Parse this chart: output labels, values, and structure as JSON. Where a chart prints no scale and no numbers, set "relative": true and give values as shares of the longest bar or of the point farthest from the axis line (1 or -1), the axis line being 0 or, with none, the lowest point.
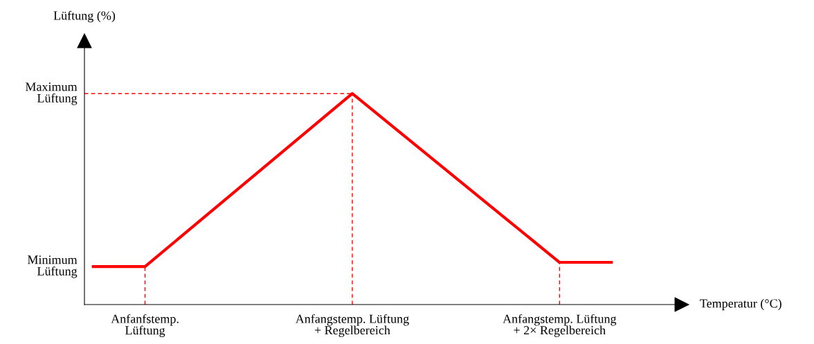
{
  "chart_data": {
    "type": "line",
    "relative": true,
    "xlabel": "Temperatur (°C)",
    "categories": [
      null,
      "Anfanfstemp.\nLüftung",
      null,
      null,
      null,
      "Anfangstemp. Lüftung\n+ Regelbereich",
      null,
      null,
      null,
      "Anfangstemp. Lüftung\n+ 2× Regelbereich",
      null
    ],
    "series": [
      {
        "color": "#ff0000",
        "values": [
          0.18,
          0.18,
          0.385,
          0.59,
          0.795,
          1,
          0.8,
          0.6,
          0.4,
          0.2,
          0.2
        ]
      }
    ],
    "annotations": [
      "Lüftung (%)",
      "Maximum\nLüftung",
      "Minimum\nLüftung"
    ],
    "ref_lines": [
      {
        "axis": "y",
        "value": 1,
        "color": "#ff0000",
        "line_style": "dashed"
      },
      {
        "axis": "x",
        "value": "Anfanfstemp.\nLüftung",
        "color": "#ff0000",
        "line_style": "dashed"
      },
      {
        "axis": "x",
        "value": "Anfangstemp. Lüftung\n+ Regelbereich",
        "color": "#ff0000",
        "line_style": "dashed"
      },
      {
        "axis": "x",
        "value": "Anfangstemp. Lüftung\n+ 2× Regelbereich",
        "color": "#ff0000",
        "line_style": "dashed"
      }
    ],
    "marker": "none",
    "line_style": "solid"
  }
}
